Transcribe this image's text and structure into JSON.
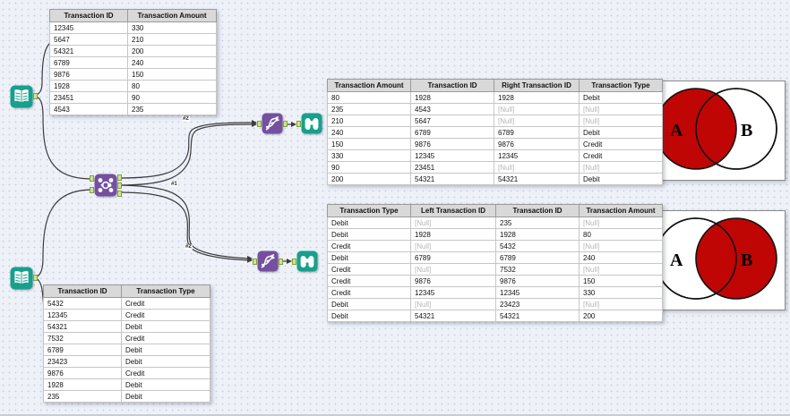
{
  "colors": {
    "tool_teal": "#17a08c",
    "tool_purple": "#74509f",
    "anchor_green": "#cfe394",
    "venn_red": "#c00505",
    "wire": "#3c3c3c",
    "table_header_bg": "#d9d9d9",
    "null_text": "#b5b5b5"
  },
  "tools": {
    "input_top": {
      "icon": "input-data-icon"
    },
    "input_bottom": {
      "icon": "input-data-icon"
    },
    "join": {
      "icon": "join-icon"
    },
    "union_top": {
      "icon": "union-icon"
    },
    "union_bottom": {
      "icon": "union-icon"
    },
    "browse_top": {
      "icon": "browse-binoculars-icon"
    },
    "browse_bottom": {
      "icon": "browse-binoculars-icon"
    }
  },
  "tables": {
    "input_top": {
      "headers": [
        "Transaction ID",
        "Transaction Amount"
      ],
      "rows": [
        [
          "12345",
          "330"
        ],
        [
          "5647",
          "210"
        ],
        [
          "54321",
          "200"
        ],
        [
          "6789",
          "240"
        ],
        [
          "9876",
          "150"
        ],
        [
          "1928",
          "80"
        ],
        [
          "23451",
          "90"
        ],
        [
          "4543",
          "235"
        ]
      ]
    },
    "input_bottom": {
      "headers": [
        "Transaction ID",
        "Transaction Type"
      ],
      "rows": [
        [
          "5432",
          "Credit"
        ],
        [
          "12345",
          "Credit"
        ],
        [
          "54321",
          "Debit"
        ],
        [
          "7532",
          "Credit"
        ],
        [
          "6789",
          "Debit"
        ],
        [
          "23423",
          "Debit"
        ],
        [
          "9876",
          "Credit"
        ],
        [
          "1928",
          "Debit"
        ],
        [
          "235",
          "Debit"
        ]
      ]
    },
    "left_join_result": {
      "headers": [
        "Transaction Amount",
        "Transaction ID",
        "Right Transaction ID",
        "Transaction Type"
      ],
      "rows": [
        [
          "80",
          "1928",
          "1928",
          "Debit"
        ],
        [
          "235",
          "4543",
          "[Null]",
          "[Null]"
        ],
        [
          "210",
          "5647",
          "[Null]",
          "[Null]"
        ],
        [
          "240",
          "6789",
          "6789",
          "Debit"
        ],
        [
          "150",
          "9876",
          "9876",
          "Credit"
        ],
        [
          "330",
          "12345",
          "12345",
          "Credit"
        ],
        [
          "90",
          "23451",
          "[Null]",
          "[Null]"
        ],
        [
          "200",
          "54321",
          "54321",
          "Debit"
        ]
      ]
    },
    "right_join_result": {
      "headers": [
        "Transaction Type",
        "Left Transaction ID",
        "Transaction ID",
        "Transaction Amount"
      ],
      "rows": [
        [
          "Debit",
          "[Null]",
          "235",
          "[Null]"
        ],
        [
          "Debit",
          "1928",
          "1928",
          "80"
        ],
        [
          "Credit",
          "[Null]",
          "5432",
          "[Null]"
        ],
        [
          "Debit",
          "6789",
          "6789",
          "240"
        ],
        [
          "Credit",
          "[Null]",
          "7532",
          "[Null]"
        ],
        [
          "Credit",
          "9876",
          "9876",
          "150"
        ],
        [
          "Credit",
          "12345",
          "12345",
          "330"
        ],
        [
          "Debit",
          "[Null]",
          "23423",
          "[Null]"
        ],
        [
          "Debit",
          "54321",
          "54321",
          "200"
        ]
      ]
    }
  },
  "venn_top": {
    "label_a": "A",
    "label_b": "B",
    "filled_side": "A"
  },
  "venn_bottom": {
    "label_a": "A",
    "label_b": "B",
    "filled_side": "B"
  },
  "connections": {
    "labels": [
      "#2",
      "#1",
      "#2"
    ]
  }
}
